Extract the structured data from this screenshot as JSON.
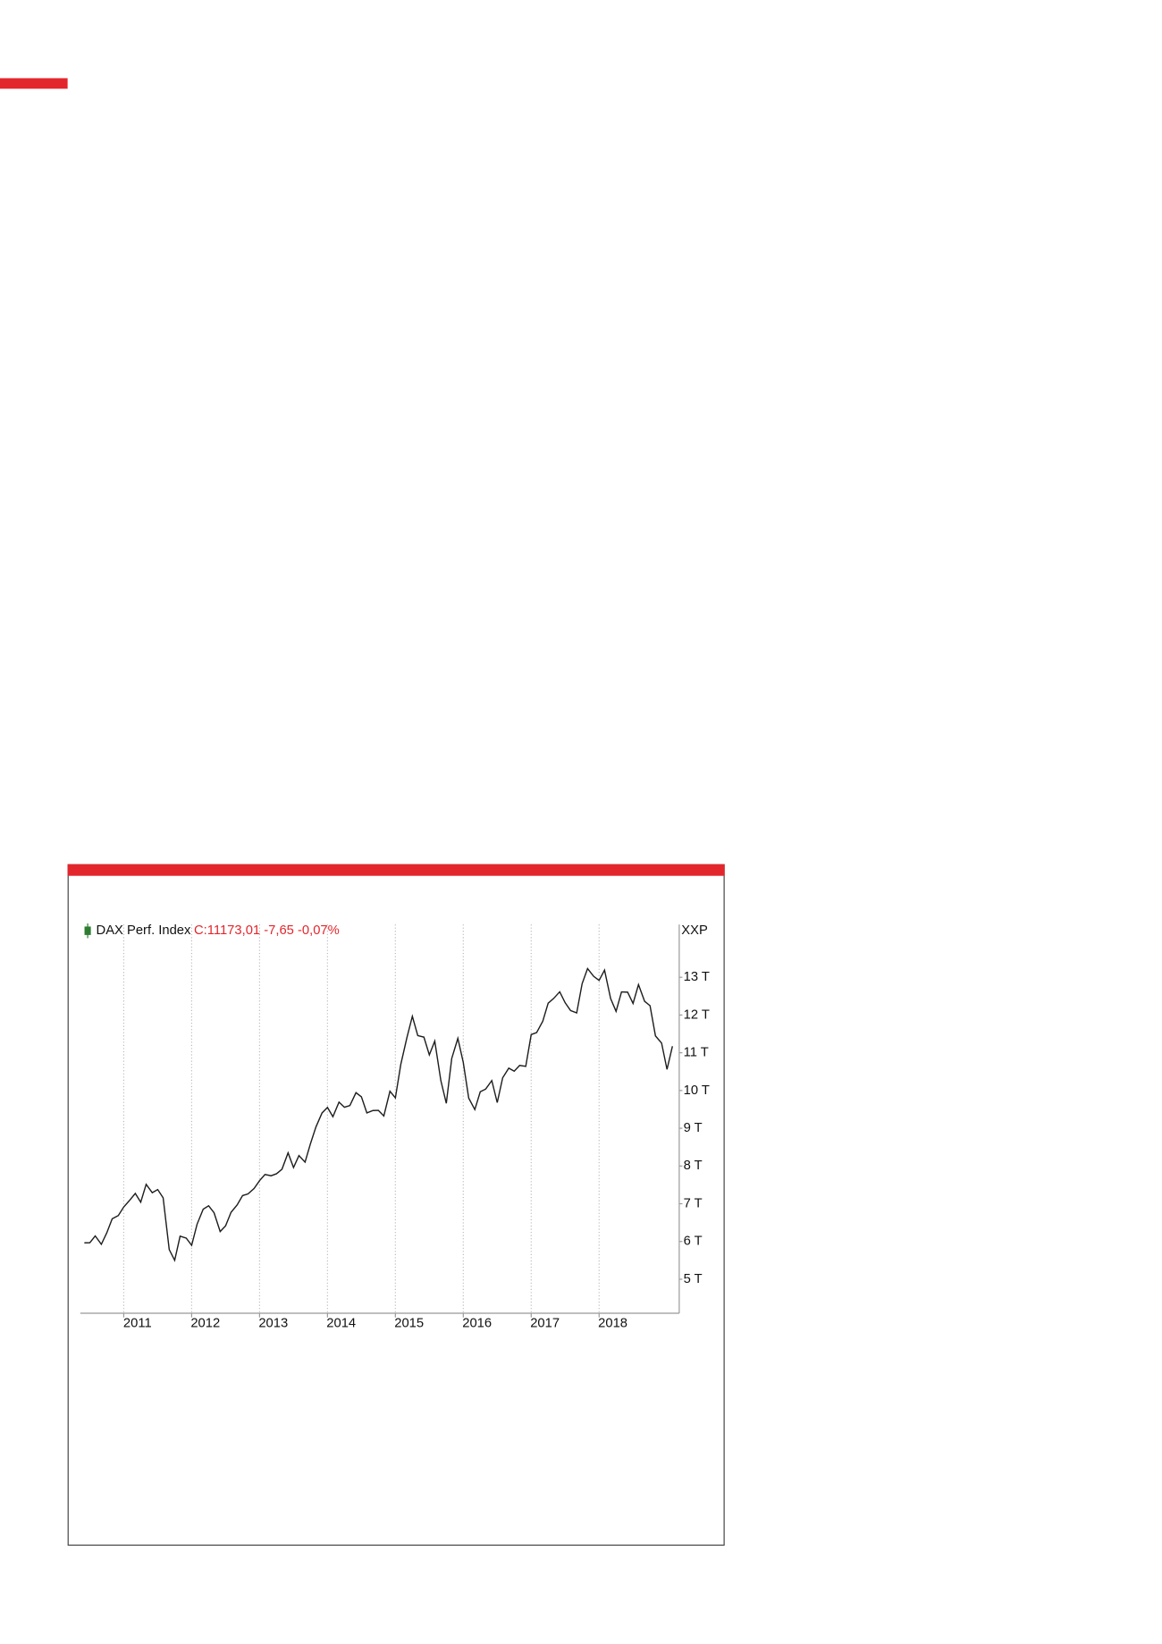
{
  "chart_data": {
    "type": "line",
    "annotation": "C:11173,01 -7,65 -0,07%",
    "y_axis_label": "XXP",
    "x": [
      2010.42,
      2010.5,
      2010.58,
      2010.67,
      2010.75,
      2010.83,
      2010.92,
      2011.0,
      2011.08,
      2011.17,
      2011.25,
      2011.33,
      2011.42,
      2011.5,
      2011.58,
      2011.67,
      2011.75,
      2011.83,
      2011.92,
      2012.0,
      2012.08,
      2012.17,
      2012.25,
      2012.33,
      2012.42,
      2012.5,
      2012.58,
      2012.67,
      2012.75,
      2012.83,
      2012.92,
      2013.0,
      2013.08,
      2013.17,
      2013.25,
      2013.33,
      2013.42,
      2013.5,
      2013.58,
      2013.67,
      2013.75,
      2013.83,
      2013.92,
      2014.0,
      2014.08,
      2014.17,
      2014.25,
      2014.33,
      2014.42,
      2014.5,
      2014.58,
      2014.67,
      2014.75,
      2014.83,
      2014.92,
      2015.0,
      2015.08,
      2015.17,
      2015.25,
      2015.33,
      2015.42,
      2015.5,
      2015.58,
      2015.67,
      2015.75,
      2015.83,
      2015.92,
      2016.0,
      2016.08,
      2016.17,
      2016.25,
      2016.33,
      2016.42,
      2016.5,
      2016.58,
      2016.67,
      2016.75,
      2016.83,
      2016.92,
      2017.0,
      2017.08,
      2017.17,
      2017.25,
      2017.33,
      2017.42,
      2017.5,
      2017.58,
      2017.67,
      2017.75,
      2017.83,
      2017.92,
      2018.0,
      2018.08,
      2018.17,
      2018.25,
      2018.33,
      2018.42,
      2018.5,
      2018.58,
      2018.67,
      2018.75,
      2018.83,
      2018.92,
      2019.0,
      2019.08
    ],
    "series": [
      {
        "name": "DAX Perf. Index",
        "color": "#1e1e1e",
        "marker_color": "#2e7d32",
        "values": [
          5964,
          5966,
          6148,
          5925,
          6229,
          6601,
          6688,
          6914,
          7077,
          7273,
          7041,
          7514,
          7293,
          7376,
          7159,
          5785,
          5502,
          6141,
          6089,
          5898,
          6458,
          6856,
          6947,
          6761,
          6264,
          6416,
          6772,
          6970,
          7216,
          7260,
          7405,
          7612,
          7776,
          7742,
          7795,
          7914,
          8349,
          7959,
          8276,
          8103,
          8594,
          9033,
          9406,
          9552,
          9306,
          9692,
          9556,
          9603,
          9943,
          9833,
          9407,
          9470,
          9474,
          9326,
          9981,
          9806,
          10694,
          11402,
          11966,
          11454,
          11414,
          10945,
          11309,
          10259,
          9660,
          10850,
          11382,
          10743,
          9798,
          9495,
          9966,
          10039,
          10263,
          9680,
          10337,
          10593,
          10511,
          10665,
          10640,
          11481,
          11535,
          11834,
          12313,
          12438,
          12615,
          12325,
          12118,
          12055,
          12829,
          13230,
          13024,
          12918,
          13189,
          12436,
          12097,
          12612,
          12605,
          12306,
          12806,
          12364,
          12247,
          11447,
          11257,
          10559,
          11173
        ]
      }
    ],
    "xlim": [
      2010.36,
      2019.18
    ],
    "xticks": [
      2011,
      2012,
      2013,
      2014,
      2015,
      2016,
      2017,
      2018
    ],
    "ylim": [
      4100,
      14400
    ],
    "yticks": [
      {
        "value": 5000,
        "label": "5 T"
      },
      {
        "value": 6000,
        "label": "6 T"
      },
      {
        "value": 7000,
        "label": "7 T"
      },
      {
        "value": 8000,
        "label": "8 T"
      },
      {
        "value": 9000,
        "label": "9 T"
      },
      {
        "value": 10000,
        "label": "10 T"
      },
      {
        "value": 11000,
        "label": "11 T"
      },
      {
        "value": 12000,
        "label": "12 T"
      },
      {
        "value": 13000,
        "label": "13 T"
      }
    ],
    "xgrid": true
  }
}
